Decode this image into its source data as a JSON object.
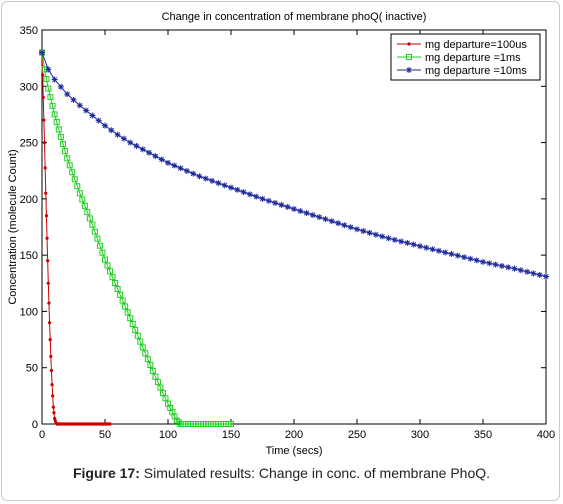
{
  "caption": {
    "label": "Figure 17:",
    "text": "Simulated results: Change in conc. of membrane PhoQ."
  },
  "chart_data": {
    "type": "line",
    "title": "Change in concentration of membrane phoQ( inactive)",
    "xlabel": "Time (secs)",
    "ylabel": "Concentration (molecule Count)",
    "xlim": [
      0,
      400
    ],
    "ylim": [
      0,
      350
    ],
    "xticks": [
      0,
      50,
      100,
      150,
      200,
      250,
      300,
      350,
      400
    ],
    "yticks": [
      0,
      50,
      100,
      150,
      200,
      250,
      300,
      350
    ],
    "grid": false,
    "legend_position": "top-right",
    "series": [
      {
        "name": "mg departure=100us",
        "color": "#cc0000",
        "marker": "dot",
        "points": [
          [
            0,
            330
          ],
          [
            1,
            290
          ],
          [
            2,
            250
          ],
          [
            3,
            205
          ],
          [
            4,
            165
          ],
          [
            5,
            125
          ],
          [
            6,
            90
          ],
          [
            7,
            60
          ],
          [
            8,
            35
          ],
          [
            9,
            15
          ],
          [
            10,
            5
          ],
          [
            11,
            1
          ],
          [
            12,
            0
          ],
          [
            41,
            0
          ],
          [
            46,
            0
          ],
          [
            51,
            0
          ],
          [
            54,
            0
          ]
        ]
      },
      {
        "name": "mg departure =1ms",
        "color": "#22cc22",
        "marker": "square",
        "points": [
          [
            0,
            330
          ],
          [
            2,
            315
          ],
          [
            5,
            298
          ],
          [
            10,
            275
          ],
          [
            15,
            255
          ],
          [
            20,
            236
          ],
          [
            30,
            205
          ],
          [
            40,
            177
          ],
          [
            50,
            146
          ],
          [
            60,
            120
          ],
          [
            70,
            94
          ],
          [
            80,
            68
          ],
          [
            90,
            42
          ],
          [
            100,
            18
          ],
          [
            107,
            3
          ],
          [
            110,
            0
          ],
          [
            120,
            0
          ],
          [
            130,
            0
          ],
          [
            140,
            0
          ],
          [
            150,
            0
          ]
        ]
      },
      {
        "name": "mg departure =10ms",
        "color": "#1f2a9c",
        "marker": "star",
        "points": [
          [
            0,
            330
          ],
          [
            5,
            315
          ],
          [
            10,
            306
          ],
          [
            20,
            293
          ],
          [
            30,
            283
          ],
          [
            40,
            274
          ],
          [
            50,
            265
          ],
          [
            60,
            257
          ],
          [
            70,
            250
          ],
          [
            80,
            244
          ],
          [
            90,
            238
          ],
          [
            100,
            232
          ],
          [
            125,
            220
          ],
          [
            150,
            210
          ],
          [
            175,
            200
          ],
          [
            200,
            191
          ],
          [
            225,
            182
          ],
          [
            250,
            173
          ],
          [
            275,
            165
          ],
          [
            300,
            158
          ],
          [
            325,
            151
          ],
          [
            350,
            144
          ],
          [
            375,
            138
          ],
          [
            400,
            131
          ]
        ]
      }
    ]
  }
}
